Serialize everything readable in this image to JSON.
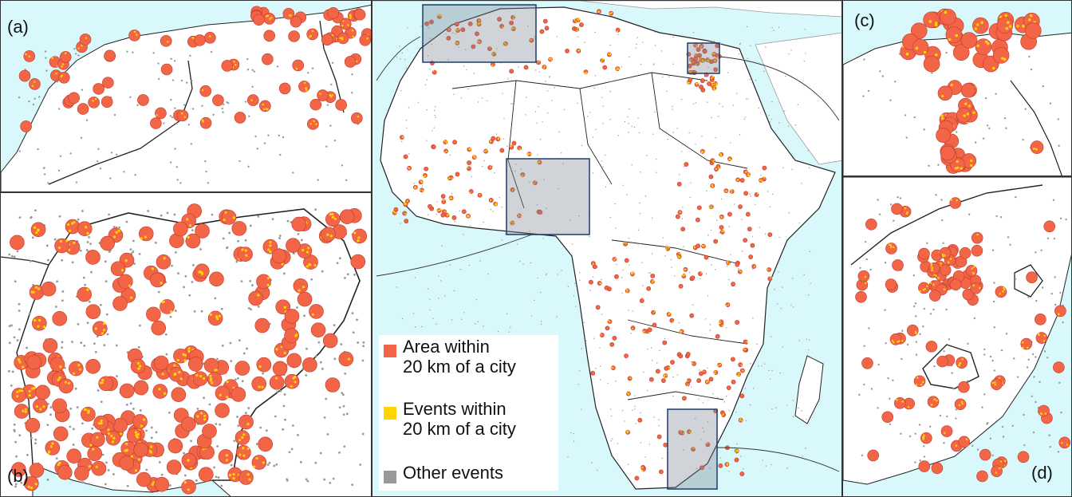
{
  "panels": {
    "a": {
      "label": "(a)"
    },
    "b": {
      "label": "(b)"
    },
    "c": {
      "label": "(c)"
    },
    "d": {
      "label": "(d)"
    }
  },
  "legend": {
    "items": [
      {
        "name": "area-within-20km",
        "text": "Area within\n20 km of a city",
        "color": "#f26647"
      },
      {
        "name": "events-within-20km",
        "text": "Events within\n20 km of a city",
        "color": "#ffd400"
      },
      {
        "name": "other-events",
        "text": "Other events",
        "color": "#999999"
      }
    ]
  },
  "colors": {
    "sea": "#d9f8fb",
    "land": "#ffffff",
    "city_area": "#f26647",
    "city_area_outline": "#c0392b",
    "event_in_city": "#ffd400",
    "other_event": "#999999",
    "inset_box": "#1f3a6b",
    "border": "#222222"
  }
}
